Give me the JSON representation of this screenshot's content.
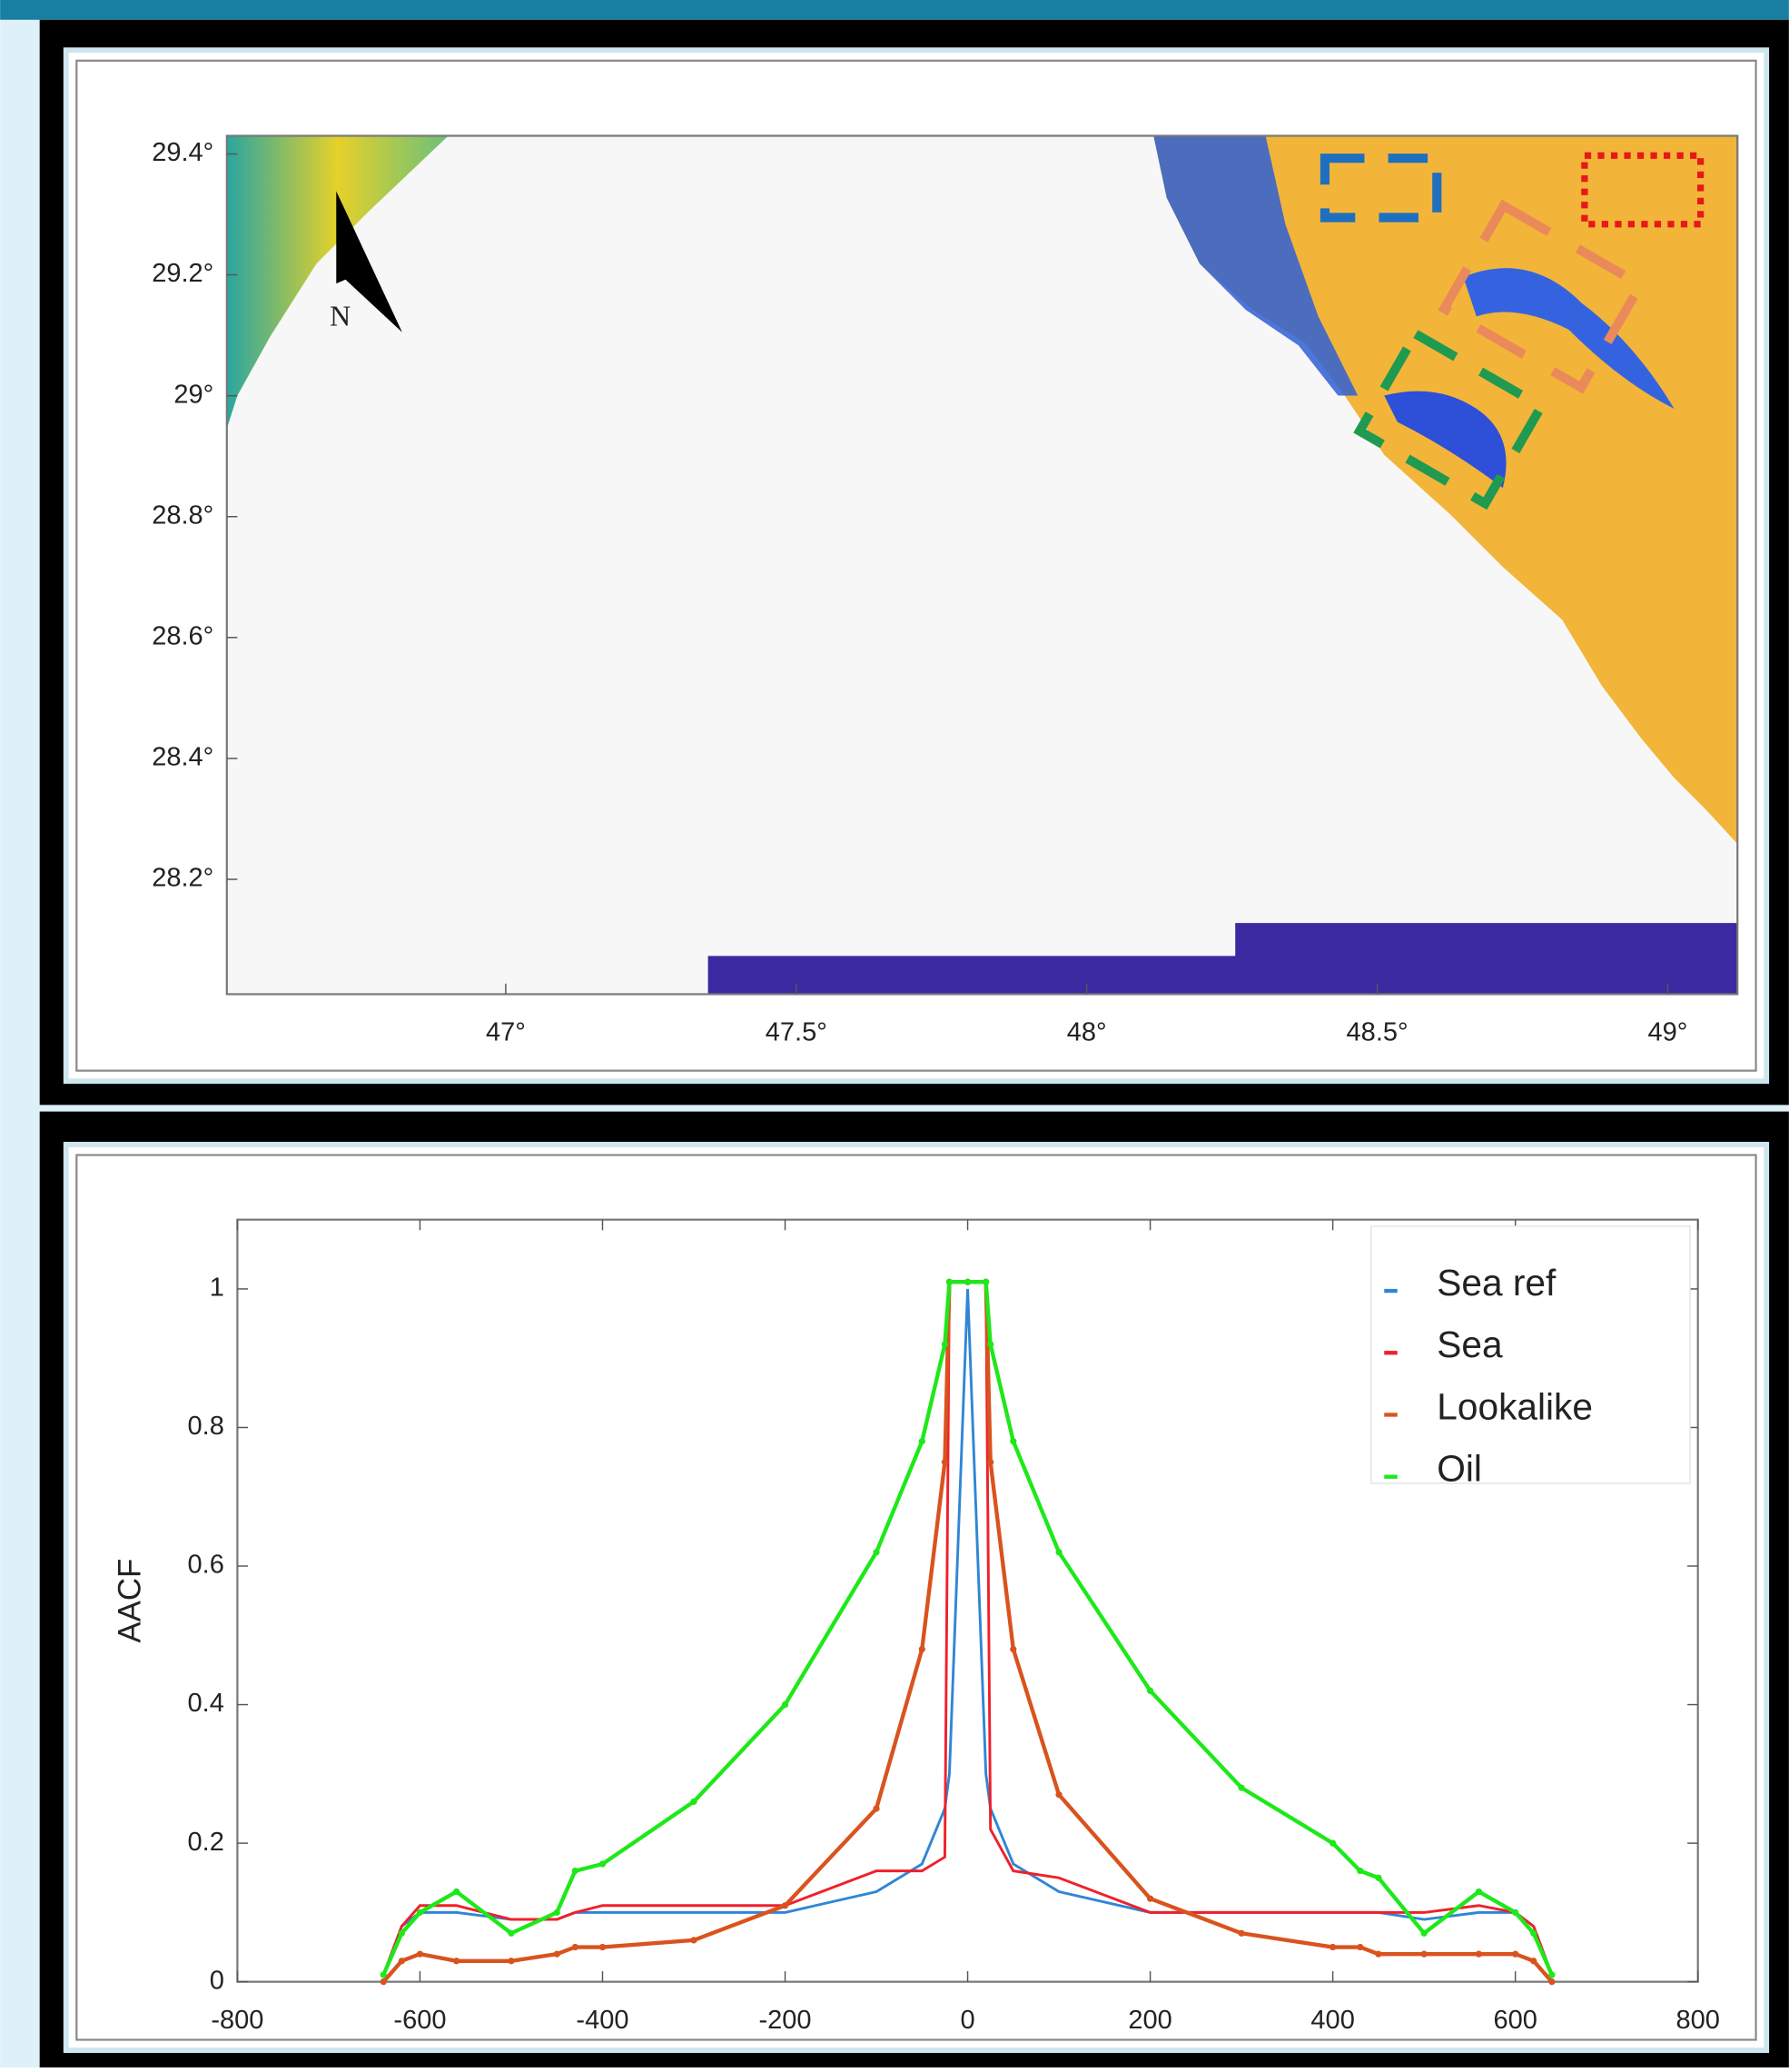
{
  "chart_data": [
    {
      "type": "map",
      "north_label": "N",
      "xlim": [
        46.52,
        49.12
      ],
      "xticks": [
        {
          "value": 47,
          "label": "47°"
        },
        {
          "value": 47.5,
          "label": "47.5°"
        },
        {
          "value": 48,
          "label": "48°"
        },
        {
          "value": 48.5,
          "label": "48.5°"
        },
        {
          "value": 49,
          "label": "49°"
        }
      ],
      "ylim": [
        28.01,
        29.43
      ],
      "yticks": [
        {
          "value": 28.2,
          "label": "28.2°"
        },
        {
          "value": 28.4,
          "label": "28.4°"
        },
        {
          "value": 28.6,
          "label": "28.6°"
        },
        {
          "value": 28.8,
          "label": "28.8°"
        },
        {
          "value": 29,
          "label": "29°"
        },
        {
          "value": 29.2,
          "label": "29.2°"
        },
        {
          "value": 29.4,
          "label": "29.4°"
        }
      ]
    },
    {
      "type": "line",
      "y_label": "AACF",
      "legend": "upper right",
      "xlim": [
        -800,
        800
      ],
      "xticks": [
        -800,
        -600,
        -400,
        -200,
        0,
        200,
        400,
        600,
        800
      ],
      "ylim": [
        0,
        1.1
      ],
      "yticks": [
        0,
        0.2,
        0.4,
        0.6,
        0.8,
        1
      ],
      "x": [
        -640,
        -620,
        -600,
        -560,
        -500,
        -450,
        -430,
        -400,
        -300,
        -200,
        -100,
        -50,
        -25,
        -20,
        0,
        20,
        25,
        50,
        100,
        200,
        300,
        400,
        430,
        450,
        500,
        560,
        600,
        620,
        640
      ],
      "series": [
        {
          "name": "Sea ref",
          "color": "#2f86d6",
          "values": [
            0.01,
            0.08,
            0.1,
            0.1,
            0.09,
            0.09,
            0.1,
            0.1,
            0.1,
            0.1,
            0.13,
            0.17,
            0.25,
            0.3,
            1.0,
            0.3,
            0.25,
            0.17,
            0.13,
            0.1,
            0.1,
            0.1,
            0.1,
            0.1,
            0.09,
            0.1,
            0.1,
            0.08,
            0.01
          ]
        },
        {
          "name": "Sea",
          "color": "#f0202a",
          "values": [
            0.01,
            0.08,
            0.11,
            0.11,
            0.09,
            0.09,
            0.1,
            0.11,
            0.11,
            0.11,
            0.16,
            0.16,
            0.18,
            1.01,
            1.01,
            1.01,
            0.22,
            0.16,
            0.15,
            0.1,
            0.1,
            0.1,
            0.1,
            0.1,
            0.1,
            0.11,
            0.1,
            0.08,
            0.01
          ]
        },
        {
          "name": "Lookalike",
          "color": "#d9531e",
          "values": [
            0.0,
            0.03,
            0.04,
            0.03,
            0.03,
            0.04,
            0.05,
            0.05,
            0.06,
            0.11,
            0.25,
            0.48,
            0.75,
            1.01,
            1.01,
            1.01,
            0.75,
            0.48,
            0.27,
            0.12,
            0.07,
            0.05,
            0.05,
            0.04,
            0.04,
            0.04,
            0.04,
            0.03,
            0.0
          ]
        },
        {
          "name": "Oil",
          "color": "#1ee81a",
          "values": [
            0.01,
            0.07,
            0.1,
            0.13,
            0.07,
            0.1,
            0.16,
            0.17,
            0.26,
            0.4,
            0.62,
            0.78,
            0.92,
            1.01,
            1.01,
            1.01,
            0.92,
            0.78,
            0.62,
            0.42,
            0.28,
            0.2,
            0.16,
            0.15,
            0.07,
            0.13,
            0.1,
            0.07,
            0.01
          ]
        }
      ]
    }
  ]
}
